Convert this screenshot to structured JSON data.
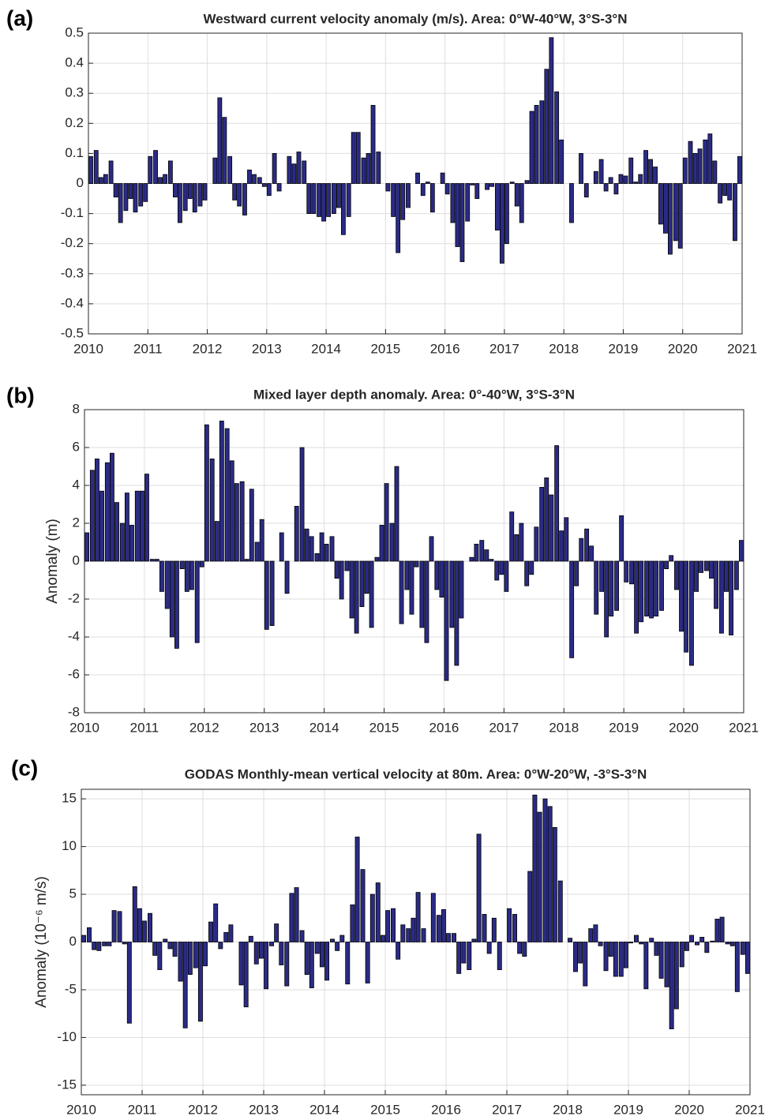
{
  "chart_data": [
    {
      "type": "bar",
      "panel_label": "(a)",
      "title": "Westward current velocity anomaly (m/s). Area: 0°W-40°W, 3°S-3°N",
      "color": "#2b2b86",
      "grid": true,
      "xlim": [
        2010,
        2021
      ],
      "xticks": [
        2010,
        2011,
        2012,
        2013,
        2014,
        2015,
        2016,
        2017,
        2018,
        2019,
        2020,
        2021
      ],
      "ylim": [
        -0.5,
        0.5
      ],
      "yticks": [
        0.5,
        0.4,
        0.3,
        0.2,
        0.1,
        0,
        -0.1,
        -0.2,
        -0.3,
        -0.4,
        -0.5
      ],
      "x": [
        2010.04,
        2010.13,
        2010.21,
        2010.29,
        2010.38,
        2010.46,
        2010.54,
        2010.63,
        2010.71,
        2010.79,
        2010.88,
        2010.96,
        2011.04,
        2011.13,
        2011.21,
        2011.29,
        2011.38,
        2011.46,
        2011.54,
        2011.63,
        2011.71,
        2011.79,
        2011.88,
        2011.96,
        2012.04,
        2012.13,
        2012.21,
        2012.29,
        2012.38,
        2012.46,
        2012.54,
        2012.63,
        2012.71,
        2012.79,
        2012.88,
        2012.96,
        2013.04,
        2013.13,
        2013.21,
        2013.29,
        2013.38,
        2013.46,
        2013.54,
        2013.63,
        2013.71,
        2013.79,
        2013.88,
        2013.96,
        2014.04,
        2014.13,
        2014.21,
        2014.29,
        2014.38,
        2014.46,
        2014.54,
        2014.63,
        2014.71,
        2014.79,
        2014.88,
        2014.96,
        2015.04,
        2015.13,
        2015.21,
        2015.29,
        2015.38,
        2015.46,
        2015.54,
        2015.63,
        2015.71,
        2015.79,
        2015.88,
        2015.96,
        2016.04,
        2016.13,
        2016.21,
        2016.29,
        2016.38,
        2016.46,
        2016.54,
        2016.63,
        2016.71,
        2016.79,
        2016.88,
        2016.96,
        2017.04,
        2017.13,
        2017.21,
        2017.29,
        2017.38,
        2017.46,
        2017.54,
        2017.63,
        2017.71,
        2017.79,
        2017.88,
        2017.96,
        2018.04,
        2018.13,
        2018.21,
        2018.29,
        2018.38,
        2018.46,
        2018.54,
        2018.63,
        2018.71,
        2018.79,
        2018.88,
        2018.96,
        2019.04,
        2019.13,
        2019.21,
        2019.29,
        2019.38,
        2019.46,
        2019.54,
        2019.63,
        2019.71,
        2019.79,
        2019.88,
        2019.96,
        2020.04,
        2020.13,
        2020.21,
        2020.29,
        2020.38,
        2020.46,
        2020.54,
        2020.63,
        2020.71,
        2020.79,
        2020.88,
        2020.96
      ],
      "values": [
        0.09,
        0.11,
        0.02,
        0.03,
        0.075,
        -0.045,
        -0.13,
        -0.09,
        -0.05,
        -0.095,
        -0.075,
        -0.06,
        0.09,
        0.11,
        0.02,
        0.03,
        0.075,
        -0.045,
        -0.13,
        -0.09,
        -0.05,
        -0.095,
        -0.075,
        -0.055,
        0.0,
        0.085,
        0.285,
        0.22,
        0.09,
        -0.055,
        -0.075,
        -0.105,
        0.045,
        0.03,
        0.02,
        -0.01,
        -0.04,
        0.1,
        -0.025,
        0.0,
        0.09,
        0.065,
        0.105,
        0.075,
        -0.1,
        -0.1,
        -0.11,
        -0.125,
        -0.11,
        -0.1,
        -0.08,
        -0.17,
        -0.11,
        0.17,
        0.17,
        0.085,
        0.1,
        0.26,
        0.105,
        0.0,
        -0.025,
        -0.11,
        -0.23,
        -0.12,
        -0.08,
        0.0,
        0.035,
        -0.04,
        0.005,
        -0.095,
        0.0,
        0.035,
        -0.035,
        -0.13,
        -0.21,
        -0.26,
        -0.125,
        -0.005,
        -0.05,
        0.0,
        -0.02,
        -0.01,
        -0.155,
        -0.265,
        -0.2,
        0.005,
        -0.075,
        -0.13,
        0.01,
        0.24,
        0.26,
        0.275,
        0.38,
        0.485,
        0.305,
        0.145,
        0.0,
        -0.13,
        0.0,
        0.1,
        -0.045,
        0.0,
        0.04,
        0.08,
        -0.025,
        0.02,
        -0.035,
        0.03,
        0.025,
        0.085,
        0.005,
        0.03,
        0.11,
        0.08,
        0.055,
        -0.135,
        -0.165,
        -0.235,
        -0.19,
        -0.215,
        0.085,
        0.14,
        0.1,
        0.115,
        0.145,
        0.165,
        0.075,
        -0.065,
        -0.04,
        -0.055,
        -0.19,
        0.09
      ]
    },
    {
      "type": "bar",
      "panel_label": "(b)",
      "title": "Mixed layer depth anomaly. Area: 0°-40°W, 3°S-3°N",
      "ylabel": "Anomaly (m)",
      "color": "#2b2b86",
      "grid": true,
      "xlim": [
        2010,
        2021
      ],
      "xticks": [
        2010,
        2011,
        2012,
        2013,
        2014,
        2015,
        2016,
        2017,
        2018,
        2019,
        2020,
        2021
      ],
      "ylim": [
        -8,
        8
      ],
      "yticks": [
        8,
        6,
        4,
        2,
        0,
        -2,
        -4,
        -6,
        -8
      ],
      "x": [
        2010.04,
        2010.13,
        2010.21,
        2010.29,
        2010.38,
        2010.46,
        2010.54,
        2010.63,
        2010.71,
        2010.79,
        2010.88,
        2010.96,
        2011.04,
        2011.13,
        2011.21,
        2011.29,
        2011.38,
        2011.46,
        2011.54,
        2011.63,
        2011.71,
        2011.79,
        2011.88,
        2011.96,
        2012.04,
        2012.13,
        2012.21,
        2012.29,
        2012.38,
        2012.46,
        2012.54,
        2012.63,
        2012.71,
        2012.79,
        2012.88,
        2012.96,
        2013.04,
        2013.13,
        2013.21,
        2013.29,
        2013.38,
        2013.46,
        2013.54,
        2013.63,
        2013.71,
        2013.79,
        2013.88,
        2013.96,
        2014.04,
        2014.13,
        2014.21,
        2014.29,
        2014.38,
        2014.46,
        2014.54,
        2014.63,
        2014.71,
        2014.79,
        2014.88,
        2014.96,
        2015.04,
        2015.13,
        2015.21,
        2015.29,
        2015.38,
        2015.46,
        2015.54,
        2015.63,
        2015.71,
        2015.79,
        2015.88,
        2015.96,
        2016.04,
        2016.13,
        2016.21,
        2016.29,
        2016.38,
        2016.46,
        2016.54,
        2016.63,
        2016.71,
        2016.79,
        2016.88,
        2016.96,
        2017.04,
        2017.13,
        2017.21,
        2017.29,
        2017.38,
        2017.46,
        2017.54,
        2017.63,
        2017.71,
        2017.79,
        2017.88,
        2017.96,
        2018.04,
        2018.13,
        2018.21,
        2018.29,
        2018.38,
        2018.46,
        2018.54,
        2018.63,
        2018.71,
        2018.79,
        2018.88,
        2018.96,
        2019.04,
        2019.13,
        2019.21,
        2019.29,
        2019.38,
        2019.46,
        2019.54,
        2019.63,
        2019.71,
        2019.79,
        2019.88,
        2019.96,
        2020.04,
        2020.13,
        2020.21,
        2020.29,
        2020.38,
        2020.46,
        2020.54,
        2020.63,
        2020.71,
        2020.79,
        2020.88,
        2020.96
      ],
      "values": [
        1.5,
        4.8,
        5.4,
        3.7,
        5.2,
        5.7,
        3.1,
        2.0,
        3.6,
        1.9,
        3.7,
        3.7,
        4.6,
        0.1,
        0.1,
        -1.6,
        -2.5,
        -4.0,
        -4.6,
        -0.4,
        -1.6,
        -1.5,
        -4.3,
        -0.3,
        7.2,
        5.4,
        2.1,
        7.4,
        7.0,
        5.3,
        4.1,
        4.2,
        0.1,
        3.8,
        1.0,
        2.2,
        -3.6,
        -3.4,
        0.0,
        1.5,
        -1.7,
        0.0,
        2.9,
        6.0,
        1.7,
        1.3,
        0.4,
        1.5,
        0.9,
        1.3,
        -0.9,
        -2.0,
        -0.5,
        -3.0,
        -3.8,
        -2.4,
        -1.7,
        -3.5,
        0.2,
        1.9,
        4.1,
        2.0,
        5.0,
        -3.3,
        -1.5,
        -2.8,
        -0.3,
        -3.5,
        -4.3,
        1.3,
        -1.5,
        -1.9,
        -6.3,
        -3.5,
        -5.5,
        -3.0,
        0.0,
        0.2,
        0.9,
        1.1,
        0.6,
        0.1,
        -1.0,
        -0.7,
        -1.6,
        2.6,
        1.4,
        2.0,
        -1.3,
        -0.7,
        1.8,
        3.9,
        4.4,
        3.5,
        6.1,
        1.6,
        2.3,
        -5.1,
        -1.3,
        1.2,
        1.7,
        0.8,
        -2.8,
        -1.6,
        -4.0,
        -2.9,
        -2.6,
        2.4,
        -1.1,
        -1.2,
        -3.8,
        -3.2,
        -2.9,
        -3.0,
        -2.9,
        -2.6,
        -0.4,
        0.3,
        -1.5,
        -3.7,
        -4.8,
        -5.5,
        -1.6,
        -0.6,
        -0.5,
        -0.9,
        -2.5,
        -3.8,
        -1.6,
        -3.9,
        -1.5,
        1.1
      ]
    },
    {
      "type": "bar",
      "panel_label": "(c)",
      "title": "GODAS Monthly-mean vertical velocity at 80m. Area: 0°W-20°W, -3°S-3°N",
      "ylabel": "Anomaly (10⁻⁶ m/s)",
      "color": "#2b2b86",
      "grid": true,
      "xlim": [
        2010,
        2021
      ],
      "xticks": [
        2010,
        2011,
        2012,
        2013,
        2014,
        2015,
        2016,
        2017,
        2018,
        2019,
        2020,
        2021
      ],
      "ylim": [
        -16,
        16
      ],
      "yticks": [
        15,
        10,
        5,
        0,
        -5,
        -10,
        -15
      ],
      "x": [
        2010.04,
        2010.13,
        2010.21,
        2010.29,
        2010.38,
        2010.46,
        2010.54,
        2010.63,
        2010.71,
        2010.79,
        2010.88,
        2010.96,
        2011.04,
        2011.13,
        2011.21,
        2011.29,
        2011.38,
        2011.46,
        2011.54,
        2011.63,
        2011.71,
        2011.79,
        2011.88,
        2011.96,
        2012.04,
        2012.13,
        2012.21,
        2012.29,
        2012.38,
        2012.46,
        2012.54,
        2012.63,
        2012.71,
        2012.79,
        2012.88,
        2012.96,
        2013.04,
        2013.13,
        2013.21,
        2013.29,
        2013.38,
        2013.46,
        2013.54,
        2013.63,
        2013.71,
        2013.79,
        2013.88,
        2013.96,
        2014.04,
        2014.13,
        2014.21,
        2014.29,
        2014.38,
        2014.46,
        2014.54,
        2014.63,
        2014.71,
        2014.79,
        2014.88,
        2014.96,
        2015.04,
        2015.13,
        2015.21,
        2015.29,
        2015.38,
        2015.46,
        2015.54,
        2015.63,
        2015.71,
        2015.79,
        2015.88,
        2015.96,
        2016.04,
        2016.13,
        2016.21,
        2016.29,
        2016.38,
        2016.46,
        2016.54,
        2016.63,
        2016.71,
        2016.79,
        2016.88,
        2016.96,
        2017.04,
        2017.13,
        2017.21,
        2017.29,
        2017.38,
        2017.46,
        2017.54,
        2017.63,
        2017.71,
        2017.79,
        2017.88,
        2017.96,
        2018.04,
        2018.13,
        2018.21,
        2018.29,
        2018.38,
        2018.46,
        2018.54,
        2018.63,
        2018.71,
        2018.79,
        2018.88,
        2018.96,
        2019.04,
        2019.13,
        2019.21,
        2019.29,
        2019.38,
        2019.46,
        2019.54,
        2019.63,
        2019.71,
        2019.79,
        2019.88,
        2019.96,
        2020.04,
        2020.13,
        2020.21,
        2020.29,
        2020.38,
        2020.46,
        2020.54,
        2020.63,
        2020.71,
        2020.79,
        2020.88,
        2020.96
      ],
      "values": [
        0.7,
        1.5,
        -0.8,
        -0.9,
        -0.4,
        -0.4,
        3.3,
        3.2,
        -0.2,
        -8.5,
        5.8,
        3.5,
        2.2,
        3.0,
        -1.4,
        -2.9,
        0.3,
        -0.7,
        -1.5,
        -4.1,
        -9.0,
        -3.4,
        -2.7,
        -8.3,
        -2.5,
        2.1,
        4.0,
        -0.7,
        1.0,
        1.8,
        0.0,
        -4.5,
        -6.8,
        0.6,
        -2.3,
        -1.7,
        -4.9,
        -0.4,
        1.9,
        -2.4,
        -4.6,
        5.1,
        5.7,
        1.2,
        -3.4,
        -4.8,
        -1.2,
        -2.6,
        -4.0,
        0.3,
        -0.9,
        0.7,
        -4.4,
        3.9,
        11.0,
        7.6,
        -4.3,
        5.0,
        6.2,
        0.7,
        3.3,
        3.5,
        -1.8,
        1.8,
        1.4,
        2.5,
        5.2,
        1.4,
        0.0,
        5.1,
        2.8,
        3.4,
        0.9,
        0.9,
        -3.3,
        -2.2,
        -2.9,
        0.3,
        11.3,
        2.9,
        -1.2,
        2.5,
        -2.9,
        0.0,
        3.5,
        2.9,
        -1.2,
        -1.5,
        7.4,
        15.4,
        13.6,
        15.0,
        14.2,
        12.0,
        6.4,
        0.0,
        0.4,
        -3.1,
        -2.2,
        -4.6,
        1.4,
        1.8,
        -0.4,
        -3.0,
        -1.5,
        -3.6,
        -3.6,
        -2.7,
        -0.1,
        0.7,
        -0.2,
        -4.9,
        0.4,
        -1.4,
        -3.8,
        -4.7,
        -9.1,
        -7.0,
        -2.6,
        -0.9,
        0.7,
        -0.3,
        0.5,
        -1.1,
        0.1,
        2.4,
        2.6,
        -0.2,
        -0.4,
        -5.2,
        -1.3,
        -3.3
      ]
    }
  ]
}
